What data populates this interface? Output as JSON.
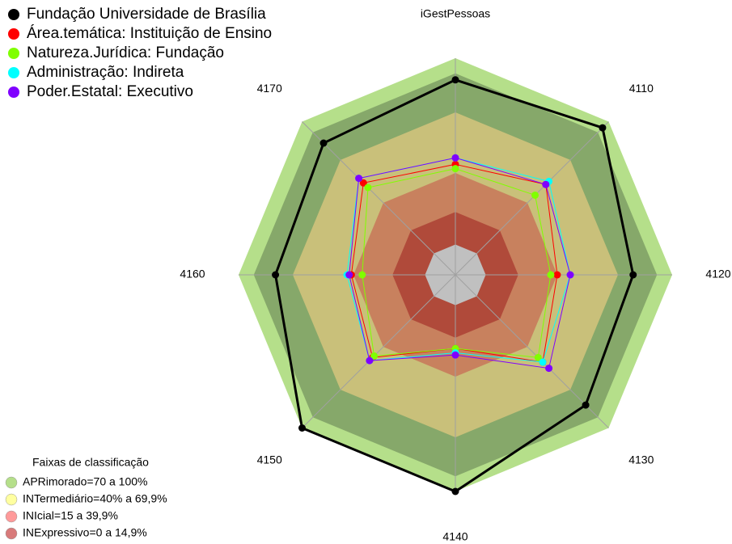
{
  "chart_data": {
    "type": "radar",
    "categories": [
      "iGestPessoas",
      "4110",
      "4120",
      "4130",
      "4140",
      "4150",
      "4160",
      "4170"
    ],
    "ylim": [
      0,
      100
    ],
    "bands": [
      {
        "value": 100,
        "color": "#b5df8a"
      },
      {
        "value": 93,
        "color": "#86a86a"
      },
      {
        "value": 75,
        "color": "#c9c07a"
      },
      {
        "value": 47,
        "color": "#c8815e"
      },
      {
        "value": 29,
        "color": "#b04a3a"
      },
      {
        "value": 14,
        "color": "#c0c0c0"
      }
    ],
    "series": [
      {
        "name": "Fundação Universidade de Brasília",
        "color": "#000000",
        "values": [
          90,
          96,
          82,
          85,
          100,
          100,
          83,
          86
        ]
      },
      {
        "name": "Área.temática: Instituição de Ensino",
        "color": "#ff0000",
        "values": [
          51,
          59,
          47,
          57,
          34,
          54,
          48,
          60
        ]
      },
      {
        "name": "Natureza.Jurídica: Fundação",
        "color": "#80ff00",
        "values": [
          49,
          52,
          44,
          54,
          34,
          53,
          43,
          57
        ]
      },
      {
        "name": "Administração: Indireta",
        "color": "#00ffff",
        "values": [
          54,
          61,
          53,
          57,
          36,
          56,
          50,
          63
        ]
      },
      {
        "name": "Poder.Estatal: Executivo",
        "color": "#8000ff",
        "values": [
          54,
          59,
          53,
          61,
          37,
          56,
          49,
          63
        ]
      }
    ],
    "legend2": {
      "title": "Faixas de classificação",
      "items": [
        {
          "label": "APRimorado=70 a 100%",
          "color": "#b5df8a"
        },
        {
          "label": "INTermediário=40% a 69,9%",
          "color": "#ffffa0"
        },
        {
          "label": "INIcial=15 a 39,9%",
          "color": "#ff9a9a"
        },
        {
          "label": "INExpressivo=0 a 14,9%",
          "color": "#d87a7a"
        }
      ]
    }
  }
}
